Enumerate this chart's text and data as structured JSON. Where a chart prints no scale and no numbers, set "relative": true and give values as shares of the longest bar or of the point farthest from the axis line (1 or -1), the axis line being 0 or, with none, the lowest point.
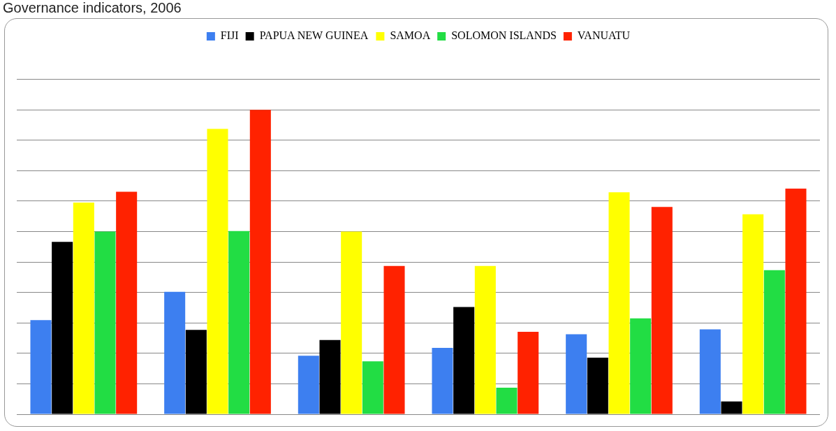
{
  "chart_data": {
    "type": "bar",
    "title": "Governance indicators, 2006",
    "relative": true,
    "grid": "y",
    "legend": "top",
    "categories": [
      null,
      null,
      null,
      null,
      null,
      null
    ],
    "series": [
      {
        "name": "FIJI",
        "color": "#3d7ff0",
        "values": [
          0.309,
          0.402,
          0.192,
          0.218,
          0.263,
          0.279
        ]
      },
      {
        "name": "PAPUA NEW GUINEA",
        "color": "#000000",
        "values": [
          0.566,
          0.277,
          0.244,
          0.352,
          0.186,
          0.042
        ]
      },
      {
        "name": "SAMOA",
        "color": "#ffff00",
        "values": [
          0.695,
          0.937,
          0.6,
          0.487,
          0.729,
          0.657
        ]
      },
      {
        "name": "SOLOMON ISLANDS",
        "color": "#22dd44",
        "values": [
          0.6,
          0.602,
          0.174,
          0.087,
          0.315,
          0.473
        ]
      },
      {
        "name": "VANUATU",
        "color": "#ff2200",
        "values": [
          0.731,
          1,
          0.487,
          0.271,
          0.681,
          0.741
        ]
      }
    ]
  }
}
